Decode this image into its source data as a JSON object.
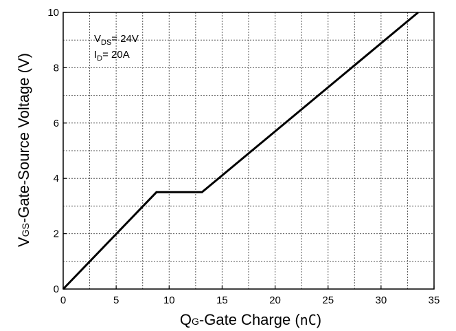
{
  "chart_data": {
    "type": "line",
    "title": "",
    "xlabel": {
      "main": "Q",
      "sub": "G",
      "rest": "-Gate Charge (",
      "unit": "nC",
      "close": ")"
    },
    "ylabel": {
      "main": "V",
      "sub": "GS",
      "rest": "-Gate-Source Voltage (V)"
    },
    "xlim": [
      0,
      35
    ],
    "ylim": [
      0,
      10
    ],
    "x_ticks": [
      0,
      5,
      10,
      15,
      20,
      25,
      30,
      35
    ],
    "y_ticks": [
      0,
      2,
      4,
      6,
      8,
      10
    ],
    "x_tick_labels": [
      "0",
      "5",
      "10",
      "15",
      "20",
      "25",
      "30",
      "35"
    ],
    "y_tick_labels": [
      "0",
      "2",
      "4",
      "6",
      "8",
      "10"
    ],
    "grid": true,
    "annotations": [
      {
        "main": "V",
        "sub": "DS",
        "rest": "= 24V"
      },
      {
        "main": "I",
        "sub": "D",
        "rest": "= 20A"
      }
    ],
    "series": [
      {
        "color": "#000000",
        "x": [
          0,
          8.8,
          13.1,
          33.5
        ],
        "y": [
          0,
          3.5,
          3.5,
          10
        ]
      }
    ]
  }
}
